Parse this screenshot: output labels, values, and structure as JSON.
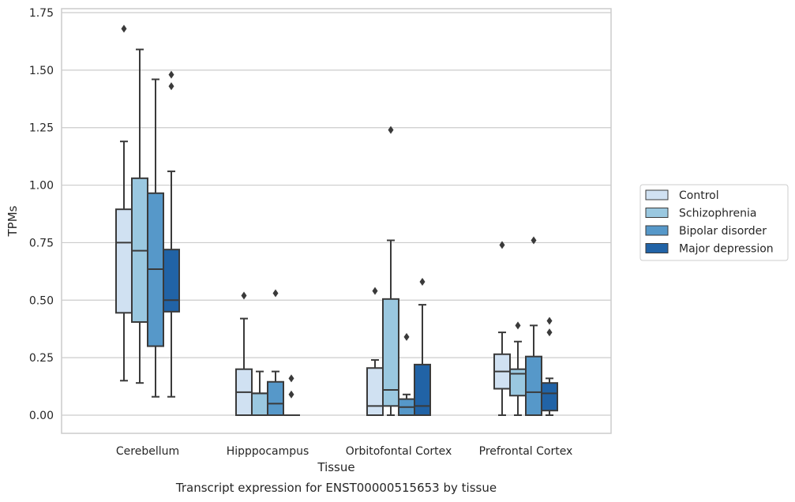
{
  "caption": "Transcript expression for ENST00000515653 by tissue",
  "chart_data": {
    "type": "box",
    "xlabel": "Tissue",
    "ylabel": "TPMs",
    "ylim": [
      -0.08,
      1.76
    ],
    "yticks": [
      "0.00",
      "0.25",
      "0.50",
      "0.75",
      "1.00",
      "1.25",
      "1.50",
      "1.75"
    ],
    "ytick_values": [
      0,
      0.25,
      0.5,
      0.75,
      1.0,
      1.25,
      1.5,
      1.75
    ],
    "categories": [
      "Cerebellum",
      "Hipppocampus",
      "Orbitofontal Cortex",
      "Prefrontal Cortex"
    ],
    "grid": "horizontal",
    "legend_position": "right",
    "series": [
      {
        "name": "Control",
        "color": "#d0e1f2",
        "boxes": [
          {
            "whisker_low": 0.15,
            "q1": 0.445,
            "median": 0.75,
            "q3": 0.895,
            "whisker_high": 1.19,
            "outliers": [
              1.68
            ]
          },
          {
            "whisker_low": 0.0,
            "q1": 0.0,
            "median": 0.1,
            "q3": 0.2,
            "whisker_high": 0.42,
            "outliers": [
              0.52
            ]
          },
          {
            "whisker_low": 0.0,
            "q1": 0.0,
            "median": 0.04,
            "q3": 0.205,
            "whisker_high": 0.24,
            "outliers": [
              0.54
            ]
          },
          {
            "whisker_low": 0.0,
            "q1": 0.115,
            "median": 0.19,
            "q3": 0.265,
            "whisker_high": 0.36,
            "outliers": [
              0.74
            ]
          }
        ]
      },
      {
        "name": "Schizophrenia",
        "color": "#9ac8e0",
        "boxes": [
          {
            "whisker_low": 0.14,
            "q1": 0.405,
            "median": 0.715,
            "q3": 1.03,
            "whisker_high": 1.59,
            "outliers": []
          },
          {
            "whisker_low": 0.0,
            "q1": 0.0,
            "median": 0.095,
            "q3": 0.095,
            "whisker_high": 0.19,
            "outliers": []
          },
          {
            "whisker_low": 0.0,
            "q1": 0.04,
            "median": 0.11,
            "q3": 0.505,
            "whisker_high": 0.76,
            "outliers": [
              1.24
            ]
          },
          {
            "whisker_low": 0.0,
            "q1": 0.085,
            "median": 0.18,
            "q3": 0.2,
            "whisker_high": 0.32,
            "outliers": [
              0.39
            ]
          }
        ]
      },
      {
        "name": "Bipolar disorder",
        "color": "#5698c9",
        "boxes": [
          {
            "whisker_low": 0.08,
            "q1": 0.3,
            "median": 0.635,
            "q3": 0.965,
            "whisker_high": 1.46,
            "outliers": []
          },
          {
            "whisker_low": 0.0,
            "q1": 0.0,
            "median": 0.05,
            "q3": 0.145,
            "whisker_high": 0.19,
            "outliers": [
              0.53
            ]
          },
          {
            "whisker_low": 0.0,
            "q1": 0.0,
            "median": 0.035,
            "q3": 0.07,
            "whisker_high": 0.09,
            "outliers": [
              0.34
            ]
          },
          {
            "whisker_low": 0.0,
            "q1": 0.0,
            "median": 0.1,
            "q3": 0.255,
            "whisker_high": 0.39,
            "outliers": [
              0.76
            ]
          }
        ]
      },
      {
        "name": "Major depression",
        "color": "#2163a6",
        "boxes": [
          {
            "whisker_low": 0.08,
            "q1": 0.45,
            "median": 0.5,
            "q3": 0.72,
            "whisker_high": 1.06,
            "outliers": [
              1.43,
              1.48
            ]
          },
          {
            "whisker_low": 0.0,
            "q1": 0.0,
            "median": 0.0,
            "q3": 0.0,
            "whisker_high": 0.0,
            "outliers": [
              0.09,
              0.16
            ]
          },
          {
            "whisker_low": 0.0,
            "q1": 0.0,
            "median": 0.04,
            "q3": 0.22,
            "whisker_high": 0.48,
            "outliers": [
              0.58
            ]
          },
          {
            "whisker_low": 0.0,
            "q1": 0.02,
            "median": 0.095,
            "q3": 0.14,
            "whisker_high": 0.16,
            "outliers": [
              0.36,
              0.41
            ]
          }
        ]
      }
    ]
  }
}
